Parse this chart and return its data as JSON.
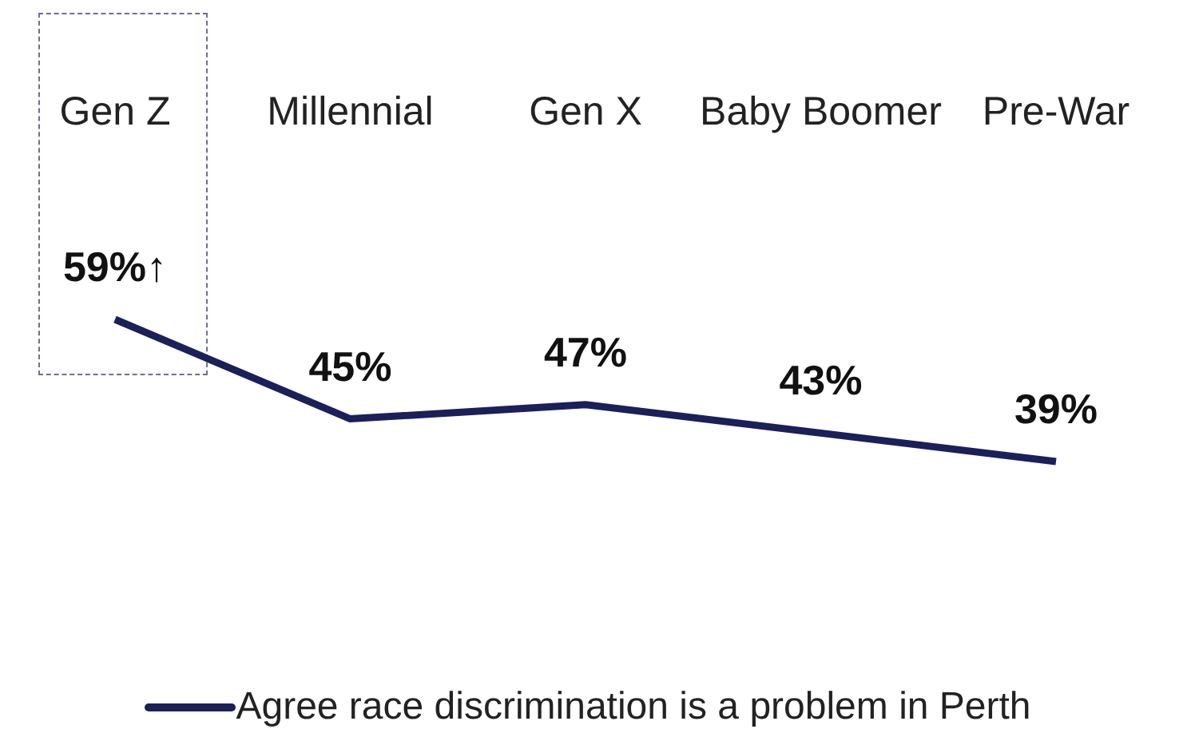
{
  "chart_data": {
    "type": "line",
    "categories": [
      "Gen Z",
      "Millennial",
      "Gen X",
      "Baby Boomer",
      "Pre-War"
    ],
    "series": [
      {
        "name": "Agree race discrimination is a problem in Perth",
        "color": "#1b1f5a",
        "values": [
          59,
          45,
          47,
          43,
          39
        ],
        "value_labels": [
          "59%↑",
          "45%",
          "47%",
          "43%",
          "39%"
        ]
      }
    ],
    "legend": "bottom",
    "marker": "none",
    "line_style": "solid",
    "grid": false
  }
}
